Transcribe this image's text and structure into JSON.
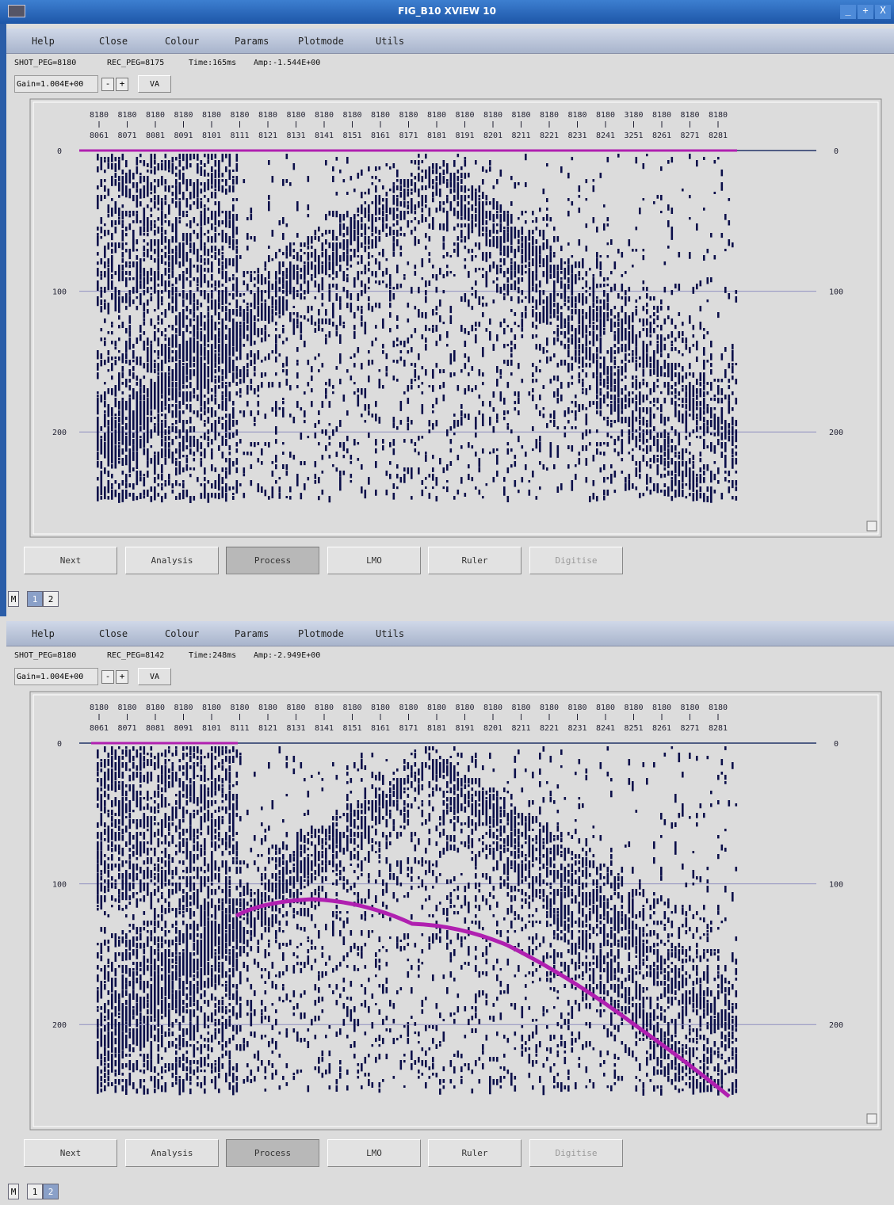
{
  "window": {
    "title": "FIG_B10 XVIEW 10",
    "controls": [
      "_",
      "+",
      "X"
    ]
  },
  "panels": [
    {
      "menu": [
        "Help",
        "Close",
        "Colour",
        "Params",
        "Plotmode",
        "Utils"
      ],
      "status": [
        "SHOT_PEG=8180",
        "REC_PEG=8175",
        "Time:165ms",
        "Amp:-1.544E+00"
      ],
      "gain": "Gain=1.004E+00",
      "gain_buttons": [
        "-",
        "+"
      ],
      "mode": "VA",
      "shot_pegs": [
        "8180",
        "8180",
        "8180",
        "8180",
        "8180",
        "8180",
        "8180",
        "8180",
        "8180",
        "8180",
        "8180",
        "8180",
        "8180",
        "8180",
        "8180",
        "8180",
        "8180",
        "8180",
        "8180",
        "3180",
        "8180",
        "8180",
        "8180"
      ],
      "receiver_pegs": [
        "8061",
        "8071",
        "8081",
        "8091",
        "8101",
        "8111",
        "8121",
        "8131",
        "8141",
        "8151",
        "8161",
        "8171",
        "8181",
        "8191",
        "8201",
        "8211",
        "8221",
        "8231",
        "8241",
        "3251",
        "8261",
        "8271",
        "8281"
      ],
      "time_range": [
        0,
        250
      ],
      "time_ticks": [
        0,
        100,
        200
      ],
      "buttons": [
        "Next",
        "Analysis",
        "Process",
        "LMO",
        "Ruler",
        "Digitise"
      ],
      "pressed_button": 2,
      "disabled_button": 5,
      "pages": [
        "M",
        "1",
        "2"
      ],
      "active_page": 1
    },
    {
      "menu": [
        "Help",
        "Close",
        "Colour",
        "Params",
        "Plotmode",
        "Utils"
      ],
      "status": [
        "SHOT_PEG=8180",
        "REC_PEG=8142",
        "Time:248ms",
        "Amp:-2.949E+00"
      ],
      "gain": "Gain=1.004E+00",
      "gain_buttons": [
        "-",
        "+"
      ],
      "mode": "VA",
      "shot_pegs": [
        "8180",
        "8180",
        "8180",
        "8180",
        "8180",
        "8180",
        "8180",
        "8180",
        "8180",
        "8180",
        "8180",
        "8180",
        "8180",
        "8180",
        "8180",
        "8180",
        "8180",
        "8180",
        "8180",
        "8180",
        "8180",
        "8180",
        "8180"
      ],
      "receiver_pegs": [
        "8061",
        "8071",
        "8081",
        "8091",
        "8101",
        "8111",
        "8121",
        "8131",
        "8141",
        "8151",
        "8161",
        "8171",
        "8181",
        "8191",
        "8201",
        "8211",
        "8221",
        "8231",
        "8241",
        "8251",
        "8261",
        "8271",
        "8281"
      ],
      "time_range": [
        0,
        250
      ],
      "time_ticks": [
        0,
        100,
        200
      ],
      "buttons": [
        "Next",
        "Analysis",
        "Process",
        "LMO",
        "Ruler",
        "Digitise"
      ],
      "pressed_button": 2,
      "disabled_button": 5,
      "pages": [
        "M",
        "1",
        "2"
      ],
      "active_page": 2
    }
  ]
}
